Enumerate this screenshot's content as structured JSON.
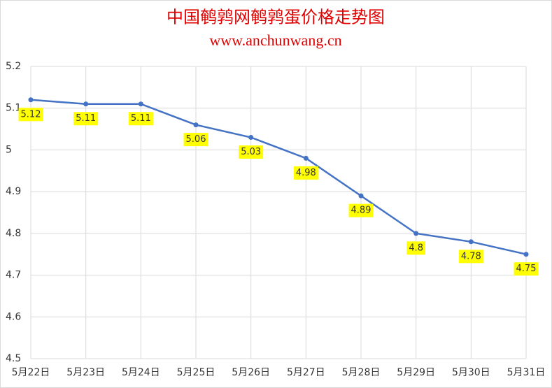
{
  "chart_data": {
    "type": "line",
    "title": "中国鹌鹑网鹌鹑蛋价格走势图",
    "subtitle": "www.anchunwang.cn",
    "categories": [
      "5月22日",
      "5月23日",
      "5月24日",
      "5月25日",
      "5月26日",
      "5月27日",
      "5月28日",
      "5月29日",
      "5月30日",
      "5月31日"
    ],
    "series": [
      {
        "color": "#4472c4",
        "values": [
          5.12,
          5.11,
          5.11,
          5.06,
          5.03,
          4.98,
          4.89,
          4.8,
          4.78,
          4.75
        ]
      }
    ],
    "ylim": [
      4.5,
      5.2
    ],
    "yticks": [
      4.5,
      4.6,
      4.7,
      4.8,
      4.9,
      5,
      5.1,
      5.2
    ],
    "grid": true,
    "label_color": "#ffff00"
  }
}
